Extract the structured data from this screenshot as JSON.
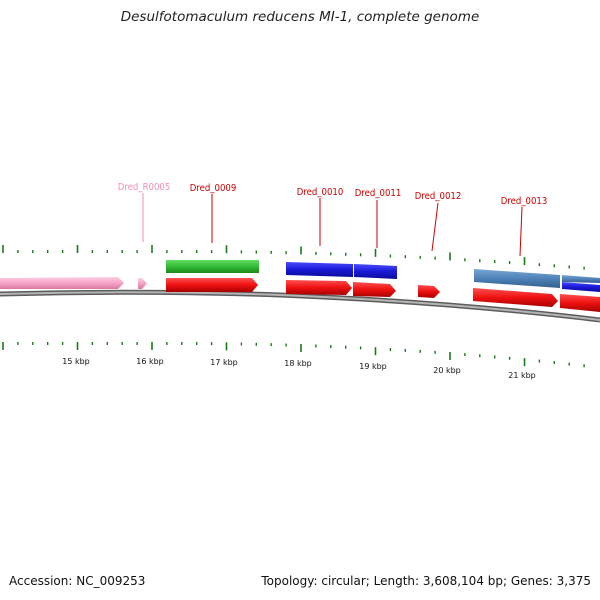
{
  "title": "Desulfotomaculum reducens MI-1, complete genome",
  "footer": {
    "accession": "Accession: NC_009253",
    "summary": "Topology: circular; Length: 3,608,104 bp; Genes: 3,375"
  },
  "scale_labels": [
    "15 kbp",
    "16 kbp",
    "17 kbp",
    "18 kbp",
    "19 kbp",
    "20 kbp",
    "21 kbp"
  ],
  "gene_labels": [
    {
      "name": "Dred_R0005",
      "color": "#f48fb1"
    },
    {
      "name": "Dred_0009",
      "color": "#cc0000"
    },
    {
      "name": "Dred_0010",
      "color": "#cc0000"
    },
    {
      "name": "Dred_0011",
      "color": "#cc0000"
    },
    {
      "name": "Dred_0012",
      "color": "#cc0000"
    },
    {
      "name": "Dred_0013",
      "color": "#cc0000"
    }
  ],
  "colors": {
    "tick": "#1a7a1a",
    "backbone": "#8a8a8a",
    "red": "#ee1111",
    "green": "#33bb33",
    "blue": "#1a1ad6",
    "steel": "#4f82b8",
    "pink": "#f6a3c8"
  }
}
